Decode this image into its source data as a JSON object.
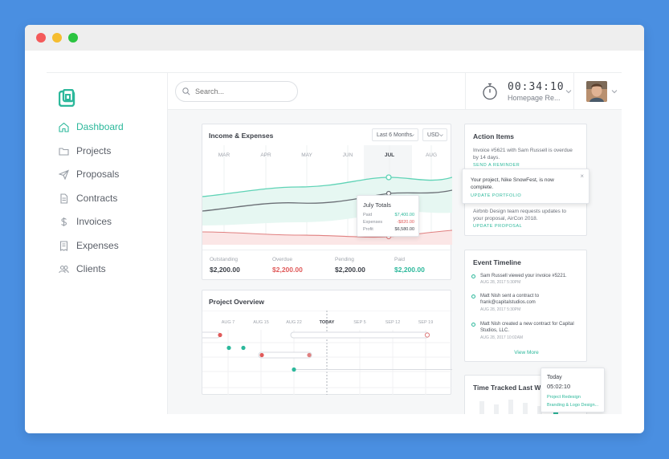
{
  "search": {
    "placeholder": "Search..."
  },
  "timer": {
    "time": "00:34:10",
    "project": "Homepage Re..."
  },
  "sidebar": {
    "items": [
      {
        "label": "Dashboard",
        "icon": "home-icon",
        "active": true
      },
      {
        "label": "Projects",
        "icon": "folder-icon"
      },
      {
        "label": "Proposals",
        "icon": "paper-plane-icon"
      },
      {
        "label": "Contracts",
        "icon": "document-icon"
      },
      {
        "label": "Invoices",
        "icon": "dollar-icon"
      },
      {
        "label": "Expenses",
        "icon": "receipt-icon"
      },
      {
        "label": "Clients",
        "icon": "people-icon"
      }
    ]
  },
  "income": {
    "title": "Income & Expenses",
    "period": "Last 6 Months",
    "currency": "USD",
    "months": [
      "MAR",
      "APR",
      "MAY",
      "JUN",
      "JUL",
      "AUG"
    ],
    "active_month": "JUL",
    "popover": {
      "title": "July Totals",
      "rows": [
        {
          "label": "Paid",
          "value": "$7,400.00"
        },
        {
          "label": "Expenses",
          "value": "-$820.00"
        },
        {
          "label": "Profit",
          "value": "$6,580.00"
        }
      ]
    },
    "stats": [
      {
        "label": "Outstanding",
        "value": "$2,200.00",
        "color": "#3c4048"
      },
      {
        "label": "Overdue",
        "value": "$2,200.00",
        "color": "#e05a5a"
      },
      {
        "label": "Pending",
        "value": "$2,200.00",
        "color": "#3c4048"
      },
      {
        "label": "Paid",
        "value": "$2,200.00",
        "color": "#2cb89b"
      }
    ]
  },
  "project_overview": {
    "title": "Project Overview",
    "dates": [
      "AUG 7",
      "AUG 15",
      "AUG 22",
      "TODAY",
      "SEP 5",
      "SEP 12",
      "SEP 19"
    ]
  },
  "action_items": {
    "title": "Action Items",
    "item1_text": "Invoice #5621 with Sam Russell is overdue by 14 days.",
    "item1_link": "SEND A REMINDER",
    "popup_text": "Your project, Nike SnowFest, is now complete.",
    "popup_link": "UPDATE PORTFOLIO",
    "item3_text": "Airbnb Design team requests updates to your proposal, AirCon 2018.",
    "item3_link": "UPDATE PROPOSAL"
  },
  "event_timeline": {
    "title": "Event Timeline",
    "events": [
      {
        "text": "Sam Russell viewed your invoice #5221.",
        "date": "AUG 28, 2017 5:30PM"
      },
      {
        "text": "Matt Nish sent a contract to frank@capitalstudios.com",
        "date": "AUG 28, 2017 5:30PM"
      },
      {
        "text": "Matt Nish created a new contract for Capital Studios, LLC.",
        "date": "AUG 28, 2017 10:02AM"
      }
    ],
    "more": "View More"
  },
  "time_tracked": {
    "title": "Time Tracked Last Week",
    "popover": {
      "label": "Today",
      "time": "05:02:10",
      "projects": [
        "Project Redesign",
        "Branding & Logo Design..."
      ]
    }
  },
  "colors": {
    "accent": "#2cb89b",
    "danger": "#e05a5a",
    "income_line": "#5fd3b6",
    "expense_line": "#6b6f76"
  }
}
